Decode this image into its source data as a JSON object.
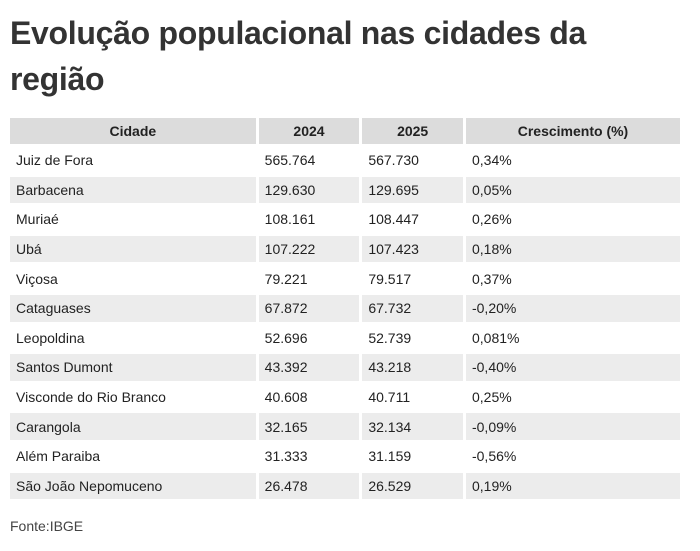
{
  "title": "Evolução populacional nas cidades da região",
  "source": "Fonte:IBGE",
  "chart_data": {
    "type": "table",
    "columns": [
      "Cidade",
      "2024",
      "2025",
      "Crescimento (%)"
    ],
    "rows": [
      [
        "Juiz de Fora",
        "565.764",
        "567.730",
        "0,34%"
      ],
      [
        "Barbacena",
        "129.630",
        "129.695",
        "0,05%"
      ],
      [
        "Muriaé",
        "108.161",
        "108.447",
        "0,26%"
      ],
      [
        "Ubá",
        "107.222",
        "107.423",
        "0,18%"
      ],
      [
        "Viçosa",
        "79.221",
        "79.517",
        "0,37%"
      ],
      [
        "Cataguases",
        "67.872",
        "67.732",
        "-0,20%"
      ],
      [
        "Leopoldina",
        "52.696",
        "52.739",
        "0,081%"
      ],
      [
        "Santos Dumont",
        "43.392",
        "43.218",
        "-0,40%"
      ],
      [
        "Visconde do Rio Branco",
        "40.608",
        "40.711",
        "0,25%"
      ],
      [
        "Carangola",
        "32.165",
        "32.134",
        "-0,09%"
      ],
      [
        "Além Paraiba",
        "31.333",
        "31.159",
        "-0,56%"
      ],
      [
        "São João Nepomuceno",
        "26.478",
        "26.529",
        "0,19%"
      ]
    ]
  }
}
